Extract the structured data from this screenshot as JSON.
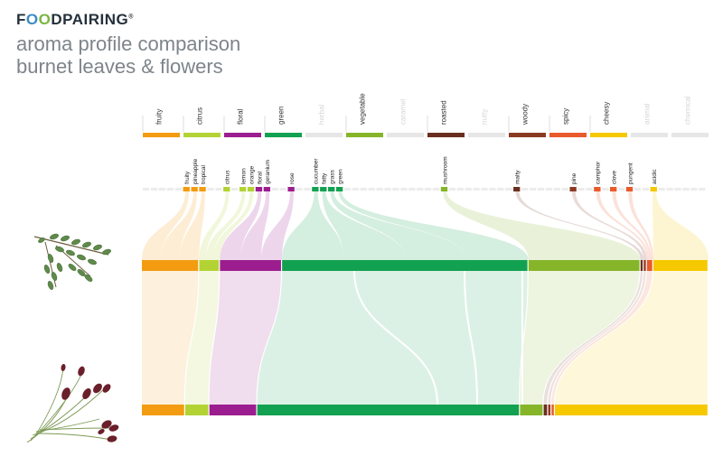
{
  "brand": {
    "name_pre": "F",
    "name_o1": "O",
    "name_o2": "O",
    "name_post": "DPAIRING",
    "mark": "®"
  },
  "titles": {
    "line1": "aroma profile comparison",
    "line2": "burnet leaves & flowers"
  },
  "images": {
    "top": "burnet-leaves-photo",
    "bottom": "burnet-flowers-photo"
  },
  "chart_data": {
    "type": "alluvial",
    "title": "aroma profile comparison",
    "subtitle": "burnet leaves & flowers",
    "families": [
      {
        "name": "fruity",
        "color": "#f39c12",
        "active": true
      },
      {
        "name": "citrus",
        "color": "#b3d334",
        "active": true
      },
      {
        "name": "floral",
        "color": "#9c1d8f",
        "active": true
      },
      {
        "name": "green",
        "color": "#12a150",
        "active": true
      },
      {
        "name": "herbal",
        "color": "#e6e6e6",
        "active": false
      },
      {
        "name": "vegetable",
        "color": "#86b52a",
        "active": true
      },
      {
        "name": "caramel",
        "color": "#e6e6e6",
        "active": false
      },
      {
        "name": "roasted",
        "color": "#6b2e1e",
        "active": true
      },
      {
        "name": "nutty",
        "color": "#e6e6e6",
        "active": false
      },
      {
        "name": "woody",
        "color": "#8b3a22",
        "active": true
      },
      {
        "name": "spicy",
        "color": "#e95a2c",
        "active": true
      },
      {
        "name": "cheesy",
        "color": "#f5c800",
        "active": true
      },
      {
        "name": "animal",
        "color": "#e6e6e6",
        "active": false
      },
      {
        "name": "chemical",
        "color": "#e6e6e6",
        "active": false
      }
    ],
    "components": [
      {
        "name": "fruity",
        "family": "fruity"
      },
      {
        "name": "pineapple",
        "family": "fruity"
      },
      {
        "name": "tropical",
        "family": "fruity"
      },
      {
        "name": "citrus",
        "family": "citrus"
      },
      {
        "name": "lemon",
        "family": "citrus"
      },
      {
        "name": "orange",
        "family": "citrus"
      },
      {
        "name": "floral",
        "family": "floral"
      },
      {
        "name": "geranium",
        "family": "floral"
      },
      {
        "name": "rose",
        "family": "floral"
      },
      {
        "name": "cucumber",
        "family": "green"
      },
      {
        "name": "fatty",
        "family": "green"
      },
      {
        "name": "grass",
        "family": "green"
      },
      {
        "name": "green",
        "family": "green"
      },
      {
        "name": "mushroom",
        "family": "vegetable"
      },
      {
        "name": "malty",
        "family": "roasted"
      },
      {
        "name": "pine",
        "family": "woody"
      },
      {
        "name": "camphor",
        "family": "spicy"
      },
      {
        "name": "clove",
        "family": "spicy"
      },
      {
        "name": "pungent",
        "family": "spicy"
      },
      {
        "name": "acidic",
        "family": "cheesy"
      }
    ],
    "ingredients": [
      {
        "name": "burnet leaves",
        "segments": [
          {
            "family": "fruity",
            "share": 10.8
          },
          {
            "family": "citrus",
            "share": 3.9
          },
          {
            "family": "floral",
            "share": 11.7
          },
          {
            "family": "green",
            "share": 46.4
          },
          {
            "family": "vegetable",
            "share": 21.1
          },
          {
            "family": "roasted",
            "share": 0.6
          },
          {
            "family": "woody",
            "share": 0.6
          },
          {
            "family": "spicy",
            "share": 1.2
          },
          {
            "family": "cheesy",
            "share": 10.4
          }
        ]
      },
      {
        "name": "burnet flowers",
        "segments": [
          {
            "family": "fruity",
            "share": 7.7
          },
          {
            "family": "citrus",
            "share": 4.3
          },
          {
            "family": "floral",
            "share": 8.5
          },
          {
            "family": "green",
            "share": 46.7
          },
          {
            "family": "vegetable",
            "share": 4.2
          },
          {
            "family": "roasted",
            "share": 0.8
          },
          {
            "family": "woody",
            "share": 0.6
          },
          {
            "family": "spicy",
            "share": 0.6
          },
          {
            "family": "cheesy",
            "share": 27.3
          }
        ]
      }
    ]
  }
}
